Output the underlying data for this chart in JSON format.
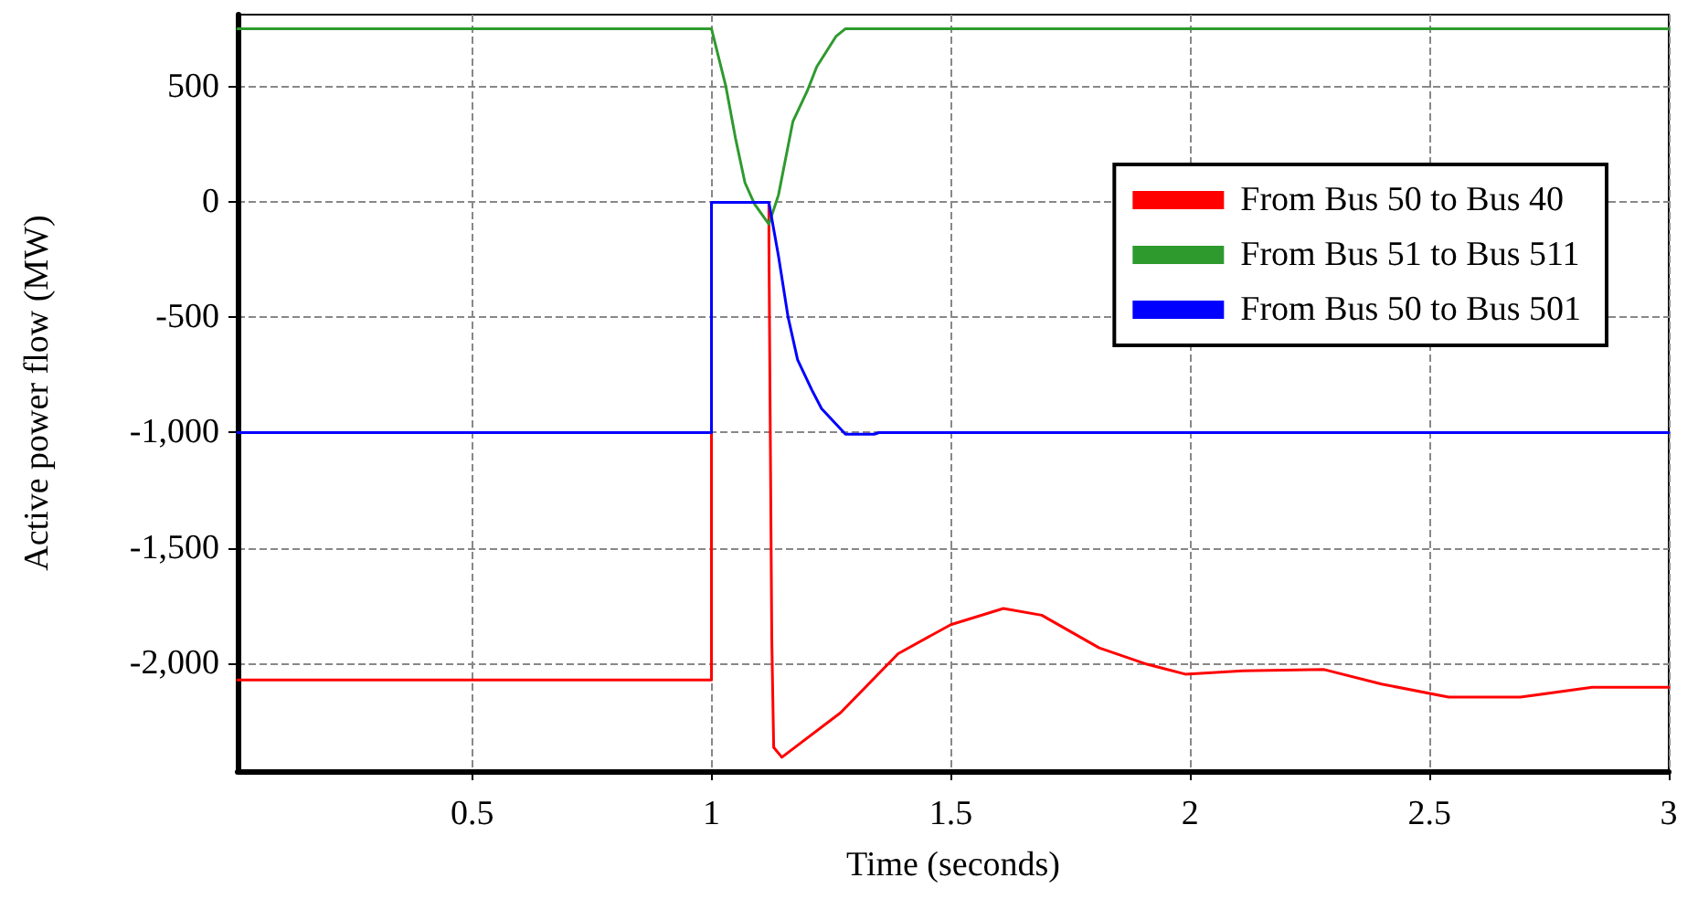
{
  "chart_data": {
    "type": "line",
    "xlabel": "Time (seconds)",
    "ylabel": "Active power flow (MW)",
    "xlim": [
      0.01,
      3
    ],
    "xticks": [
      0.5,
      1,
      1.5,
      2,
      2.5,
      3
    ],
    "ylim": [
      -2470,
      815
    ],
    "yticks": [
      {
        "value": -2000,
        "label": "-2,000"
      },
      {
        "value": -1500,
        "label": "-1,500"
      },
      {
        "value": -1000,
        "label": "-1,000"
      },
      -500,
      0,
      500
    ],
    "grid": true,
    "legend": "right",
    "marker": "none",
    "line_style": "solid",
    "series": [
      {
        "name": "From Bus 50 to Bus 40",
        "color": "#ff0000",
        "x": [
          0.01,
          1.0,
          1.0,
          1.12,
          1.12,
          1.126,
          1.13,
          1.147,
          1.27,
          1.39,
          1.5,
          1.61,
          1.69,
          1.81,
          1.91,
          1.99,
          2.11,
          2.28,
          2.4,
          2.54,
          2.69,
          2.84,
          3.0
        ],
        "values": [
          -2074,
          -2074,
          0,
          0,
          -167,
          -1893,
          -2367,
          -2410,
          -2216,
          -1960,
          -1834,
          -1764,
          -1793,
          -1935,
          -2006,
          -2049,
          -2035,
          -2029,
          -2092,
          -2149,
          -2149,
          -2106,
          -2106
        ]
      },
      {
        "name": "From Bus 51 to Bus 511",
        "color": "#2e9a2e",
        "x": [
          0.01,
          1.0,
          1.03,
          1.05,
          1.07,
          1.09,
          1.12,
          1.14,
          1.16,
          1.17,
          1.2,
          1.22,
          1.26,
          1.28,
          3.0
        ],
        "values": [
          754,
          754,
          504,
          280,
          85,
          -8,
          -95,
          32,
          244,
          350,
          483,
          589,
          720,
          754,
          754
        ]
      },
      {
        "name": "From Bus 50 to Bus 501",
        "color": "#0000ff",
        "x": [
          0.01,
          1.0,
          1.0,
          1.12,
          1.14,
          1.16,
          1.18,
          1.21,
          1.23,
          1.28,
          1.34,
          1.35,
          3.0
        ],
        "values": [
          -1000,
          -1000,
          0,
          0,
          -233,
          -498,
          -684,
          -816,
          -896,
          -1007,
          -1007,
          -1000,
          -1000
        ]
      }
    ]
  }
}
